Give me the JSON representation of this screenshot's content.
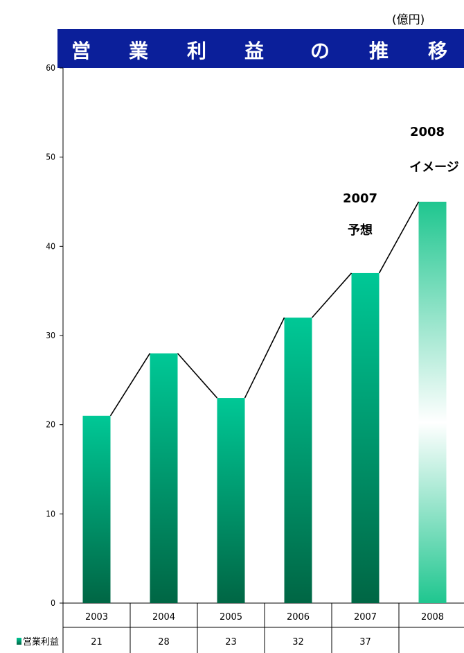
{
  "unit_label": "(億円)",
  "title_chars": [
    "営",
    "業",
    "利",
    "益",
    "の",
    "推",
    "移"
  ],
  "colors": {
    "title_bg": "#0b1f9a",
    "bar_top": "#00c896",
    "bar_bottom": "#006644",
    "bar_2008_top": "#1fc68f",
    "bar_2008_mid": "#ffffff",
    "line": "#000000"
  },
  "annotations": [
    {
      "year": "2007",
      "note": "予想"
    },
    {
      "year": "2008",
      "note": "イメージ"
    }
  ],
  "chart_data": {
    "type": "bar",
    "title": "営業利益の推移",
    "ylabel": "(億円)",
    "ylim": [
      0,
      60
    ],
    "yticks": [
      0,
      10,
      20,
      30,
      40,
      50,
      60
    ],
    "categories": [
      "2003",
      "2004",
      "2005",
      "2006",
      "2007",
      "2008"
    ],
    "series": [
      {
        "name": "営業利益",
        "values": [
          21,
          28,
          23,
          32,
          37,
          45
        ]
      }
    ],
    "table_values": [
      "21",
      "28",
      "23",
      "32",
      "37",
      ""
    ],
    "trend_line": true,
    "grid": false,
    "legend": "bottom-table"
  }
}
